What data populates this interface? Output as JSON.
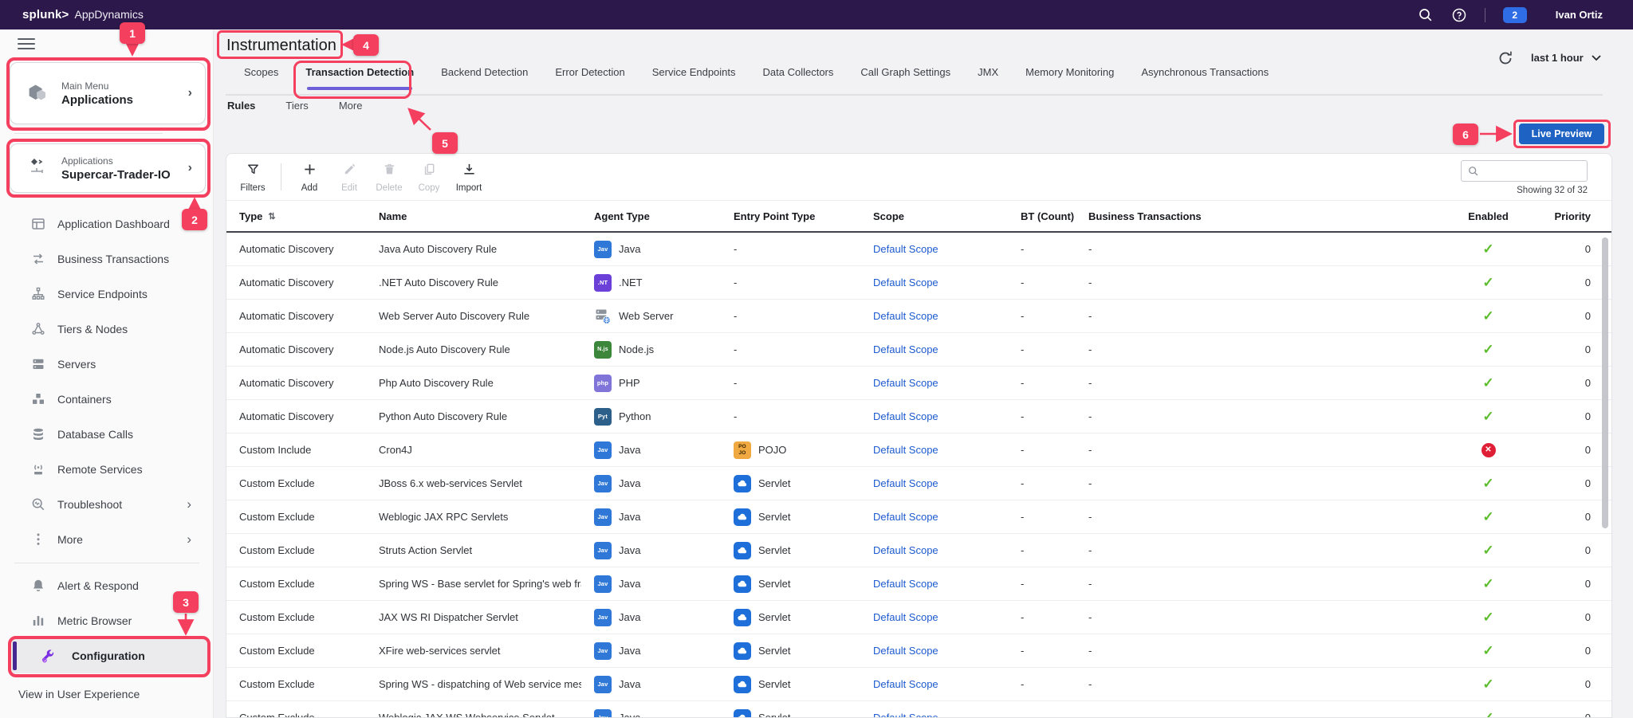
{
  "topbar": {
    "brand_bold": "splunk>",
    "brand_name": "AppDynamics",
    "notification_count": "2",
    "user_name": "Ivan Ortiz"
  },
  "sidebar": {
    "main_menu_label": "Main Menu",
    "main_menu_value": "Applications",
    "app_label": "Applications",
    "app_value": "Supercar-Trader-IO",
    "items": [
      {
        "icon": "dashboard-icon",
        "label": "Application Dashboard"
      },
      {
        "icon": "business-transactions-icon",
        "label": "Business Transactions"
      },
      {
        "icon": "service-endpoints-icon",
        "label": "Service Endpoints"
      },
      {
        "icon": "tiers-nodes-icon",
        "label": "Tiers & Nodes"
      },
      {
        "icon": "servers-icon",
        "label": "Servers"
      },
      {
        "icon": "containers-icon",
        "label": "Containers"
      },
      {
        "icon": "database-calls-icon",
        "label": "Database Calls"
      },
      {
        "icon": "remote-services-icon",
        "label": "Remote Services"
      },
      {
        "icon": "troubleshoot-icon",
        "label": "Troubleshoot",
        "chevron": true
      },
      {
        "icon": "more-icon",
        "label": "More",
        "chevron": true
      }
    ],
    "bottom_items": [
      {
        "icon": "alert-icon",
        "label": "Alert & Respond"
      },
      {
        "icon": "metric-browser-icon",
        "label": "Metric Browser"
      },
      {
        "icon": "configuration-icon",
        "label": "Configuration",
        "active": true
      }
    ],
    "footer_link": "View in User Experience"
  },
  "page": {
    "title": "Instrumentation",
    "time_range": "last 1 hour"
  },
  "tabs": [
    {
      "label": "Scopes"
    },
    {
      "label": "Transaction Detection",
      "active": true
    },
    {
      "label": "Backend Detection"
    },
    {
      "label": "Error Detection"
    },
    {
      "label": "Service Endpoints"
    },
    {
      "label": "Data Collectors"
    },
    {
      "label": "Call Graph Settings"
    },
    {
      "label": "JMX"
    },
    {
      "label": "Memory Monitoring"
    },
    {
      "label": "Asynchronous Transactions"
    }
  ],
  "subtabs": [
    {
      "label": "Rules",
      "active": true
    },
    {
      "label": "Tiers"
    },
    {
      "label": "More"
    }
  ],
  "toolbar": {
    "actions": [
      {
        "label": "Filters",
        "icon": "filter-icon",
        "enabled": true
      },
      {
        "label": "Add",
        "icon": "add-icon",
        "enabled": true
      },
      {
        "label": "Edit",
        "icon": "edit-icon",
        "enabled": false
      },
      {
        "label": "Delete",
        "icon": "delete-icon",
        "enabled": false
      },
      {
        "label": "Copy",
        "icon": "copy-icon",
        "enabled": false
      },
      {
        "label": "Import",
        "icon": "import-icon",
        "enabled": true
      }
    ],
    "live_preview_label": "Live Preview",
    "search_placeholder": "",
    "showing_text": "Showing 32 of 32"
  },
  "badge_text": {
    "java": "Jav",
    "dotnet": ".NT",
    "nodejs": "N.js",
    "php": "php",
    "python": "Pyt"
  },
  "table": {
    "columns": [
      "Type",
      "Name",
      "Agent Type",
      "Entry Point Type",
      "Scope",
      "BT (Count)",
      "Business Transactions",
      "Enabled",
      "Priority"
    ],
    "rows": [
      {
        "type": "Automatic Discovery",
        "name": "Java Auto Discovery Rule",
        "agent": "Java",
        "agent_icon": "java",
        "entry": "-",
        "entry_icon": null,
        "scope": "Default Scope",
        "bt_count": "-",
        "business_transactions": "-",
        "enabled": true,
        "priority": "0"
      },
      {
        "type": "Automatic Discovery",
        "name": ".NET Auto Discovery Rule",
        "agent": ".NET",
        "agent_icon": "dotnet",
        "entry": "-",
        "entry_icon": null,
        "scope": "Default Scope",
        "bt_count": "-",
        "business_transactions": "-",
        "enabled": true,
        "priority": "0"
      },
      {
        "type": "Automatic Discovery",
        "name": "Web Server Auto Discovery Rule",
        "agent": "Web Server",
        "agent_icon": "webserver",
        "entry": "-",
        "entry_icon": null,
        "scope": "Default Scope",
        "bt_count": "-",
        "business_transactions": "-",
        "enabled": true,
        "priority": "0"
      },
      {
        "type": "Automatic Discovery",
        "name": "Node.js Auto Discovery Rule",
        "agent": "Node.js",
        "agent_icon": "nodejs",
        "entry": "-",
        "entry_icon": null,
        "scope": "Default Scope",
        "bt_count": "-",
        "business_transactions": "-",
        "enabled": true,
        "priority": "0"
      },
      {
        "type": "Automatic Discovery",
        "name": "Php Auto Discovery Rule",
        "agent": "PHP",
        "agent_icon": "php",
        "entry": "-",
        "entry_icon": null,
        "scope": "Default Scope",
        "bt_count": "-",
        "business_transactions": "-",
        "enabled": true,
        "priority": "0"
      },
      {
        "type": "Automatic Discovery",
        "name": "Python Auto Discovery Rule",
        "agent": "Python",
        "agent_icon": "python",
        "entry": "-",
        "entry_icon": null,
        "scope": "Default Scope",
        "bt_count": "-",
        "business_transactions": "-",
        "enabled": true,
        "priority": "0"
      },
      {
        "type": "Custom Include",
        "name": "Cron4J",
        "agent": "Java",
        "agent_icon": "java",
        "entry": "POJO",
        "entry_icon": "pojo",
        "scope": "Default Scope",
        "bt_count": "-",
        "business_transactions": "-",
        "enabled": false,
        "priority": "0"
      },
      {
        "type": "Custom Exclude",
        "name": "JBoss 6.x web-services Servlet",
        "agent": "Java",
        "agent_icon": "java",
        "entry": "Servlet",
        "entry_icon": "servlet",
        "scope": "Default Scope",
        "bt_count": "-",
        "business_transactions": "-",
        "enabled": true,
        "priority": "0"
      },
      {
        "type": "Custom Exclude",
        "name": "Weblogic JAX RPC Servlets",
        "agent": "Java",
        "agent_icon": "java",
        "entry": "Servlet",
        "entry_icon": "servlet",
        "scope": "Default Scope",
        "bt_count": "-",
        "business_transactions": "-",
        "enabled": true,
        "priority": "0"
      },
      {
        "type": "Custom Exclude",
        "name": "Struts Action Servlet",
        "agent": "Java",
        "agent_icon": "java",
        "entry": "Servlet",
        "entry_icon": "servlet",
        "scope": "Default Scope",
        "bt_count": "-",
        "business_transactions": "-",
        "enabled": true,
        "priority": "0"
      },
      {
        "type": "Custom Exclude",
        "name": "Spring WS - Base servlet for Spring's web fra...",
        "agent": "Java",
        "agent_icon": "java",
        "entry": "Servlet",
        "entry_icon": "servlet",
        "scope": "Default Scope",
        "bt_count": "-",
        "business_transactions": "-",
        "enabled": true,
        "priority": "0"
      },
      {
        "type": "Custom Exclude",
        "name": "JAX WS RI Dispatcher Servlet",
        "agent": "Java",
        "agent_icon": "java",
        "entry": "Servlet",
        "entry_icon": "servlet",
        "scope": "Default Scope",
        "bt_count": "-",
        "business_transactions": "-",
        "enabled": true,
        "priority": "0"
      },
      {
        "type": "Custom Exclude",
        "name": "XFire web-services servlet",
        "agent": "Java",
        "agent_icon": "java",
        "entry": "Servlet",
        "entry_icon": "servlet",
        "scope": "Default Scope",
        "bt_count": "-",
        "business_transactions": "-",
        "enabled": true,
        "priority": "0"
      },
      {
        "type": "Custom Exclude",
        "name": "Spring WS - dispatching of Web service mess...",
        "agent": "Java",
        "agent_icon": "java",
        "entry": "Servlet",
        "entry_icon": "servlet",
        "scope": "Default Scope",
        "bt_count": "-",
        "business_transactions": "-",
        "enabled": true,
        "priority": "0"
      },
      {
        "type": "Custom Exclude",
        "name": "Weblogic JAX WS Webservice Servlet",
        "agent": "Java",
        "agent_icon": "java",
        "entry": "Servlet",
        "entry_icon": "servlet",
        "scope": "Default Scope",
        "bt_count": "-",
        "business_transactions": "-",
        "enabled": true,
        "priority": "0"
      }
    ]
  },
  "annotations": {
    "labels": [
      "1",
      "2",
      "3",
      "4",
      "5",
      "6"
    ],
    "color": "#f43f5f"
  },
  "colors": {
    "topbar_background": "#2c184a",
    "annotation_pink": "#f43f5f",
    "notification_blue": "#2e6de5",
    "live_preview_blue": "#1e63c4",
    "link_blue": "#1d5bcf",
    "enabled_green": "#5ebd2d",
    "disabled_red": "#df1f35",
    "active_tab_underline": "#6c5fd8",
    "configuration_purple": "#7b2fe3"
  }
}
